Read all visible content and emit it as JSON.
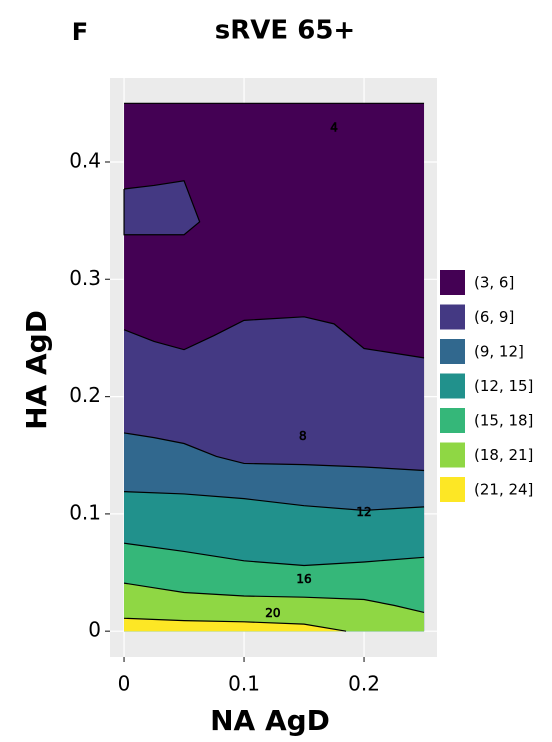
{
  "panel_label": "F",
  "chart_data": {
    "type": "contour",
    "title": "sRVE 65+",
    "x_label": "NA AgD",
    "y_label": "HA AgD",
    "xlim": [
      -0.0117,
      0.2608
    ],
    "ylim": [
      -0.022,
      0.4716
    ],
    "xticks": [
      0,
      0.1,
      0.2
    ],
    "yticks": [
      0,
      0.1,
      0.2,
      0.3,
      0.4
    ],
    "grid": true,
    "bands": [
      {
        "name": "(3, 6]",
        "color": "#440154",
        "boundaries": [
          {
            "x": [
              0,
              0.25
            ],
            "y": [
              0.45,
              0.45
            ]
          }
        ]
      },
      {
        "name": "(6, 9]",
        "color": "#443983",
        "boundaries": [
          {
            "x": [
              0,
              0.025,
              0.05,
              0.075,
              0.1,
              0.15,
              0.175,
              0.2,
              0.25
            ],
            "y": [
              0.257,
              0.247,
              0.24,
              0.252,
              0.265,
              0.268,
              0.262,
              0.241,
              0.233
            ]
          },
          {
            "x": [
              0,
              0.025,
              0.05,
              0.063,
              0.05,
              0,
              0
            ],
            "y": [
              0.377,
              0.38,
              0.384,
              0.349,
              0.338,
              0.338,
              0.377
            ]
          }
        ]
      },
      {
        "name": "(9, 12]",
        "color": "#31688e",
        "boundaries": [
          {
            "x": [
              0,
              0.025,
              0.05,
              0.077,
              0.1,
              0.15,
              0.2,
              0.25
            ],
            "y": [
              0.169,
              0.165,
              0.16,
              0.149,
              0.143,
              0.142,
              0.14,
              0.137
            ]
          }
        ]
      },
      {
        "name": "(12, 15]",
        "color": "#21918c",
        "boundaries": [
          {
            "x": [
              0,
              0.05,
              0.1,
              0.15,
              0.2,
              0.25
            ],
            "y": [
              0.119,
              0.117,
              0.113,
              0.107,
              0.103,
              0.106
            ]
          }
        ]
      },
      {
        "name": "(15, 18]",
        "color": "#35b779",
        "boundaries": [
          {
            "x": [
              0,
              0.05,
              0.1,
              0.15,
              0.2,
              0.25
            ],
            "y": [
              0.075,
              0.068,
              0.06,
              0.056,
              0.059,
              0.063
            ]
          }
        ]
      },
      {
        "name": "(18, 21]",
        "color": "#8fd744",
        "boundaries": [
          {
            "x": [
              0,
              0.025,
              0.05,
              0.1,
              0.15,
              0.2,
              0.225,
              0.25
            ],
            "y": [
              0.041,
              0.037,
              0.033,
              0.03,
              0.029,
              0.027,
              0.022,
              0.016
            ]
          }
        ]
      },
      {
        "name": "(21, 24]",
        "color": "#fde725",
        "boundaries": [
          {
            "x": [
              0,
              0.05,
              0.1,
              0.15,
              0.185
            ],
            "y": [
              0.011,
              0.009,
              0.008,
              0.006,
              0
            ]
          }
        ]
      }
    ],
    "annotations": [
      {
        "text": "4",
        "x": 0.175,
        "y": 0.429
      },
      {
        "text": "8",
        "x": 0.149,
        "y": 0.166
      },
      {
        "text": "12",
        "x": 0.2,
        "y": 0.101
      },
      {
        "text": "16",
        "x": 0.15,
        "y": 0.044
      },
      {
        "text": "20",
        "x": 0.124,
        "y": 0.015
      }
    ]
  }
}
